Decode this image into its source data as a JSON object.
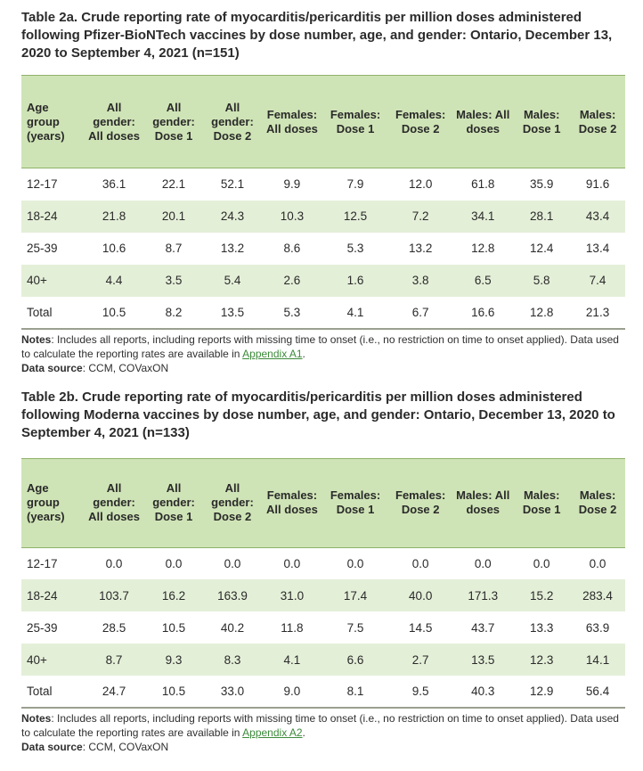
{
  "table_a": {
    "title": "Table 2a. Crude reporting rate of myocarditis/pericarditis per million doses administered following Pfizer-BioNTech vaccines by dose number, age, and gender: Ontario, December 13, 2020 to September 4, 2021 (n=151)",
    "headers": [
      "Age group (years)",
      "All gender: All doses",
      "All gender: Dose 1",
      "All gender: Dose 2",
      "Females: All doses",
      "Females: Dose 1",
      "Females: Dose 2",
      "Males: All doses",
      "Males: Dose 1",
      "Males: Dose 2"
    ],
    "rows": [
      [
        "12-17",
        "36.1",
        "22.1",
        "52.1",
        "9.9",
        "7.9",
        "12.0",
        "61.8",
        "35.9",
        "91.6"
      ],
      [
        "18-24",
        "21.8",
        "20.1",
        "24.3",
        "10.3",
        "12.5",
        "7.2",
        "34.1",
        "28.1",
        "43.4"
      ],
      [
        "25-39",
        "10.6",
        "8.7",
        "13.2",
        "8.6",
        "5.3",
        "13.2",
        "12.8",
        "12.4",
        "13.4"
      ],
      [
        "40+",
        "4.4",
        "3.5",
        "5.4",
        "2.6",
        "1.6",
        "3.8",
        "6.5",
        "5.8",
        "7.4"
      ],
      [
        "Total",
        "10.5",
        "8.2",
        "13.5",
        "5.3",
        "4.1",
        "6.7",
        "16.6",
        "12.8",
        "21.3"
      ]
    ],
    "notes_label": "Notes",
    "notes_text": ": Includes all reports, including reports with missing time to onset (i.e., no restriction on time to onset applied). Data used to calculate the reporting rates are available in ",
    "notes_link": "Appendix A1",
    "notes_end": ".",
    "source_label": "Data source",
    "source_text": ": CCM, COVax",
    "source_suffix": "ON"
  },
  "table_b": {
    "title": "Table 2b. Crude reporting rate of myocarditis/pericarditis per million doses administered following Moderna vaccines by dose number, age, and gender: Ontario, December 13, 2020 to September 4, 2021 (n=133)",
    "headers": [
      "Age group (years)",
      "All gender: All doses",
      "All gender: Dose 1",
      "All gender: Dose 2",
      "Females: All doses",
      "Females: Dose 1",
      "Females: Dose 2",
      "Males: All doses",
      "Males: Dose 1",
      "Males: Dose 2"
    ],
    "rows": [
      [
        "12-17",
        "0.0",
        "0.0",
        "0.0",
        "0.0",
        "0.0",
        "0.0",
        "0.0",
        "0.0",
        "0.0"
      ],
      [
        "18-24",
        "103.7",
        "16.2",
        "163.9",
        "31.0",
        "17.4",
        "40.0",
        "171.3",
        "15.2",
        "283.4"
      ],
      [
        "25-39",
        "28.5",
        "10.5",
        "40.2",
        "11.8",
        "7.5",
        "14.5",
        "43.7",
        "13.3",
        "63.9"
      ],
      [
        "40+",
        "8.7",
        "9.3",
        "8.3",
        "4.1",
        "6.6",
        "2.7",
        "13.5",
        "12.3",
        "14.1"
      ],
      [
        "Total",
        "24.7",
        "10.5",
        "33.0",
        "9.0",
        "8.1",
        "9.5",
        "40.3",
        "12.9",
        "56.4"
      ]
    ],
    "notes_label": "Notes",
    "notes_text": ": Includes all reports, including reports with missing time to onset (i.e., no restriction on time to onset applied). Data used to calculate the reporting rates are available in ",
    "notes_link": "Appendix A2",
    "notes_end": ".",
    "source_label": "Data source",
    "source_text": ": CCM, COVax",
    "source_suffix": "ON"
  }
}
